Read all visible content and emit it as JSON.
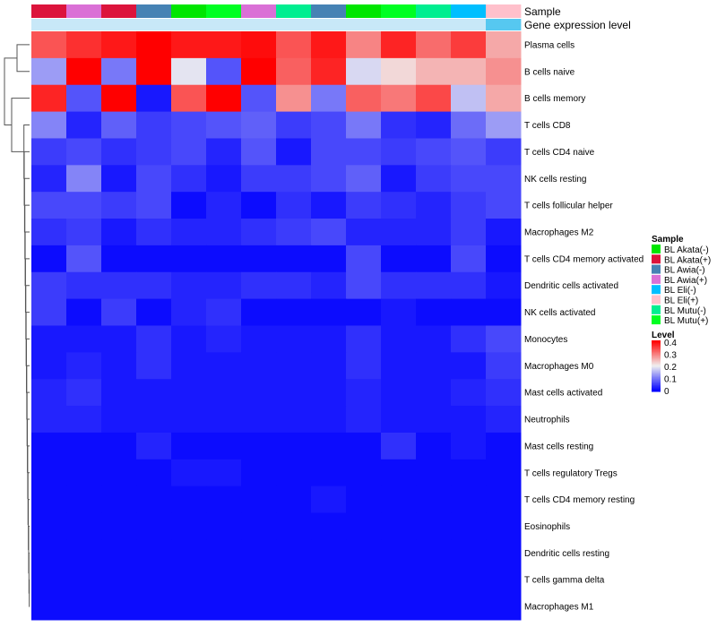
{
  "chart_data": {
    "type": "heatmap",
    "title": "",
    "annotation_tracks": [
      "Sample",
      "Gene expression level"
    ],
    "rows": [
      "Plasma cells",
      "B cells naive",
      "B cells memory",
      "T cells CD8",
      "T cells CD4 naive",
      "NK cells resting",
      "T cells follicular helper",
      "Macrophages M2",
      "T cells CD4 memory activated",
      "Dendritic cells activated",
      "NK cells activated",
      "Monocytes",
      "Macrophages M0",
      "Mast cells activated",
      "Neutrophils",
      "Mast cells resting",
      "T cells regulatory  Tregs",
      "T cells CD4 memory resting",
      "Eosinophils",
      "Dendritic cells resting",
      "T cells gamma delta",
      "Macrophages M1"
    ],
    "column_samples": [
      "BL Akata(+)",
      "BL Awia(+)",
      "BL Akata(+)",
      "BL Awia(-)",
      "BL Akata(-)",
      "BL Mutu(+)",
      "BL Awia(+)",
      "BL Mutu(-)",
      "BL Awia(-)",
      "BL Akata(-)",
      "BL Mutu(+)",
      "BL Mutu(-)",
      "BL Eli(-)",
      "BL Eli(+)"
    ],
    "values": [
      [
        0.33,
        0.36,
        0.38,
        0.4,
        0.38,
        0.38,
        0.39,
        0.33,
        0.38,
        0.29,
        0.37,
        0.31,
        0.35,
        0.26
      ],
      [
        0.13,
        0.4,
        0.1,
        0.4,
        0.19,
        0.07,
        0.4,
        0.32,
        0.37,
        0.18,
        0.22,
        0.25,
        0.25,
        0.28
      ],
      [
        0.37,
        0.07,
        0.4,
        0.02,
        0.33,
        0.4,
        0.07,
        0.28,
        0.1,
        0.32,
        0.3,
        0.34,
        0.16,
        0.26
      ],
      [
        0.11,
        0.03,
        0.08,
        0.05,
        0.06,
        0.07,
        0.08,
        0.05,
        0.06,
        0.1,
        0.04,
        0.03,
        0.09,
        0.13
      ],
      [
        0.05,
        0.06,
        0.04,
        0.05,
        0.06,
        0.03,
        0.07,
        0.02,
        0.06,
        0.06,
        0.05,
        0.06,
        0.07,
        0.05
      ],
      [
        0.03,
        0.11,
        0.02,
        0.06,
        0.04,
        0.02,
        0.05,
        0.05,
        0.06,
        0.08,
        0.02,
        0.05,
        0.06,
        0.06
      ],
      [
        0.06,
        0.06,
        0.05,
        0.06,
        0.01,
        0.03,
        0.01,
        0.04,
        0.02,
        0.05,
        0.04,
        0.03,
        0.05,
        0.06
      ],
      [
        0.04,
        0.05,
        0.02,
        0.04,
        0.03,
        0.03,
        0.04,
        0.05,
        0.06,
        0.03,
        0.03,
        0.03,
        0.05,
        0.02
      ],
      [
        0.01,
        0.07,
        0.01,
        0.01,
        0.01,
        0.01,
        0.01,
        0.01,
        0.01,
        0.06,
        0.01,
        0.01,
        0.06,
        0.01
      ],
      [
        0.05,
        0.04,
        0.04,
        0.04,
        0.03,
        0.03,
        0.04,
        0.04,
        0.03,
        0.06,
        0.04,
        0.04,
        0.04,
        0.02
      ],
      [
        0.05,
        0.01,
        0.05,
        0.01,
        0.03,
        0.04,
        0.01,
        0.01,
        0.01,
        0.01,
        0.02,
        0.01,
        0.01,
        0.01
      ],
      [
        0.02,
        0.02,
        0.02,
        0.04,
        0.02,
        0.03,
        0.02,
        0.02,
        0.02,
        0.04,
        0.02,
        0.02,
        0.04,
        0.06
      ],
      [
        0.02,
        0.03,
        0.02,
        0.04,
        0.02,
        0.02,
        0.02,
        0.02,
        0.02,
        0.04,
        0.02,
        0.02,
        0.02,
        0.05
      ],
      [
        0.03,
        0.04,
        0.02,
        0.02,
        0.02,
        0.02,
        0.02,
        0.02,
        0.02,
        0.03,
        0.02,
        0.02,
        0.03,
        0.04
      ],
      [
        0.03,
        0.03,
        0.02,
        0.02,
        0.02,
        0.02,
        0.02,
        0.02,
        0.02,
        0.03,
        0.02,
        0.02,
        0.02,
        0.03
      ],
      [
        0.01,
        0.01,
        0.01,
        0.03,
        0.01,
        0.01,
        0.01,
        0.01,
        0.01,
        0.01,
        0.04,
        0.01,
        0.02,
        0.01
      ],
      [
        0.01,
        0.01,
        0.01,
        0.01,
        0.02,
        0.02,
        0.01,
        0.01,
        0.01,
        0.01,
        0.01,
        0.01,
        0.01,
        0.01
      ],
      [
        0.01,
        0.01,
        0.01,
        0.01,
        0.01,
        0.01,
        0.01,
        0.01,
        0.02,
        0.01,
        0.01,
        0.01,
        0.01,
        0.01
      ],
      [
        0.01,
        0.01,
        0.01,
        0.01,
        0.01,
        0.01,
        0.01,
        0.01,
        0.01,
        0.01,
        0.01,
        0.01,
        0.01,
        0.01
      ],
      [
        0.01,
        0.01,
        0.01,
        0.01,
        0.01,
        0.01,
        0.01,
        0.01,
        0.01,
        0.01,
        0.01,
        0.01,
        0.01,
        0.01
      ],
      [
        0.01,
        0.01,
        0.01,
        0.01,
        0.01,
        0.01,
        0.01,
        0.01,
        0.01,
        0.01,
        0.01,
        0.01,
        0.01,
        0.01
      ],
      [
        0.01,
        0.01,
        0.01,
        0.01,
        0.01,
        0.01,
        0.01,
        0.01,
        0.01,
        0.01,
        0.01,
        0.01,
        0.01,
        0.01
      ]
    ],
    "color_scale": {
      "min": 0,
      "max": 0.4,
      "low": "#0000ff",
      "mid": "#f0f0f0",
      "high": "#ff0000",
      "mid_value": 0.2
    },
    "gene_expression_track_color": "#c8e8f8",
    "gene_expression_track_end_color": "#56c8f0",
    "row_dendrogram": true,
    "legend": {
      "position": "right",
      "sample_title": "Sample",
      "samples": [
        {
          "label": "BL Akata(-)",
          "color": "#00e600"
        },
        {
          "label": "BL Akata(+)",
          "color": "#dc143c"
        },
        {
          "label": "BL Awia(-)",
          "color": "#4682b4"
        },
        {
          "label": "BL Awia(+)",
          "color": "#da70d6"
        },
        {
          "label": "BL Eli(-)",
          "color": "#00bfff"
        },
        {
          "label": "BL Eli(+)",
          "color": "#ffc0cb"
        },
        {
          "label": "BL Mutu(-)",
          "color": "#00ee90"
        },
        {
          "label": "BL Mutu(+)",
          "color": "#00ff22"
        }
      ],
      "level_title": "Level",
      "level_ticks": [
        "0.4",
        "0.3",
        "0.2",
        "0.1",
        "0"
      ]
    }
  }
}
